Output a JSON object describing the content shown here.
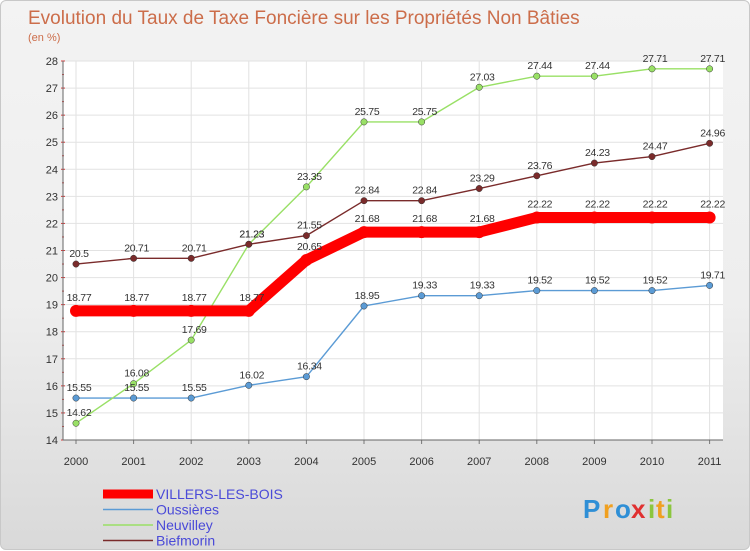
{
  "chart_data": {
    "type": "line",
    "title": "Evolution du Taux de Taxe Foncière sur les Propriétés Non Bâties",
    "subtitle": "(en %)",
    "xlabel": "",
    "ylabel": "",
    "categories": [
      "2000",
      "2001",
      "2002",
      "2003",
      "2004",
      "2005",
      "2006",
      "2007",
      "2008",
      "2009",
      "2010",
      "2011"
    ],
    "ylim": [
      14,
      28
    ],
    "yticks": [
      14,
      15,
      16,
      17,
      18,
      19,
      20,
      21,
      22,
      23,
      24,
      25,
      26,
      27,
      28
    ],
    "grid": true,
    "series": [
      {
        "name": "VILLERS-LES-BOIS",
        "color": "#ff0000",
        "values": [
          18.77,
          18.77,
          18.77,
          18.77,
          20.65,
          21.68,
          21.68,
          21.68,
          22.22,
          22.22,
          22.22,
          22.22
        ],
        "labels": [
          "18.77",
          "18.77",
          "18.77",
          "18.77",
          "20.65",
          "21.68",
          "21.68",
          "21.68",
          "22.22",
          "22.22",
          "22.22",
          "22.22"
        ]
      },
      {
        "name": "Oussières",
        "color": "#5b9bd5",
        "values": [
          15.55,
          15.55,
          15.55,
          16.02,
          16.34,
          18.95,
          19.33,
          19.33,
          19.52,
          19.52,
          19.52,
          19.71
        ],
        "labels": [
          "15.55",
          "15.55",
          "15.55",
          "16.02",
          "16.34",
          "18.95",
          "19.33",
          "19.33",
          "19.52",
          "19.52",
          "19.52",
          "19.71"
        ]
      },
      {
        "name": "Neuvilley",
        "color": "#99e066",
        "values": [
          14.62,
          16.08,
          17.69,
          21.23,
          23.35,
          25.75,
          25.75,
          27.03,
          27.44,
          27.44,
          27.71,
          27.71
        ],
        "labels": [
          "14.62",
          "16.08",
          "17.69",
          "21.23",
          "23.35",
          "25.75",
          "25.75",
          "27.03",
          "27.44",
          "27.44",
          "27.71",
          "27.71"
        ]
      },
      {
        "name": "Biefmorin",
        "color": "#7a2b2b",
        "values": [
          20.5,
          20.71,
          20.71,
          21.23,
          21.55,
          22.84,
          22.84,
          23.29,
          23.76,
          24.23,
          24.47,
          24.96
        ],
        "labels": [
          "20.5",
          "20.71",
          "20.71",
          "21.23",
          "21.55",
          "22.84",
          "22.84",
          "23.29",
          "23.76",
          "24.23",
          "24.47",
          "24.96"
        ]
      }
    ],
    "legend": {
      "placement": "bottom-left",
      "entries": [
        "VILLERS-LES-BOIS",
        "Oussières",
        "Neuvilley",
        "Biefmorin"
      ]
    }
  },
  "branding": {
    "logo_text": "Proxiti",
    "logo_letters": [
      "P",
      "r",
      "o",
      "x",
      "i",
      "t",
      "i"
    ],
    "logo_colors": [
      "#2f8fd6",
      "#f0a020",
      "#2f8fd6",
      "#e03030",
      "#8cc63f",
      "#f0a020",
      "#8cc63f"
    ]
  }
}
